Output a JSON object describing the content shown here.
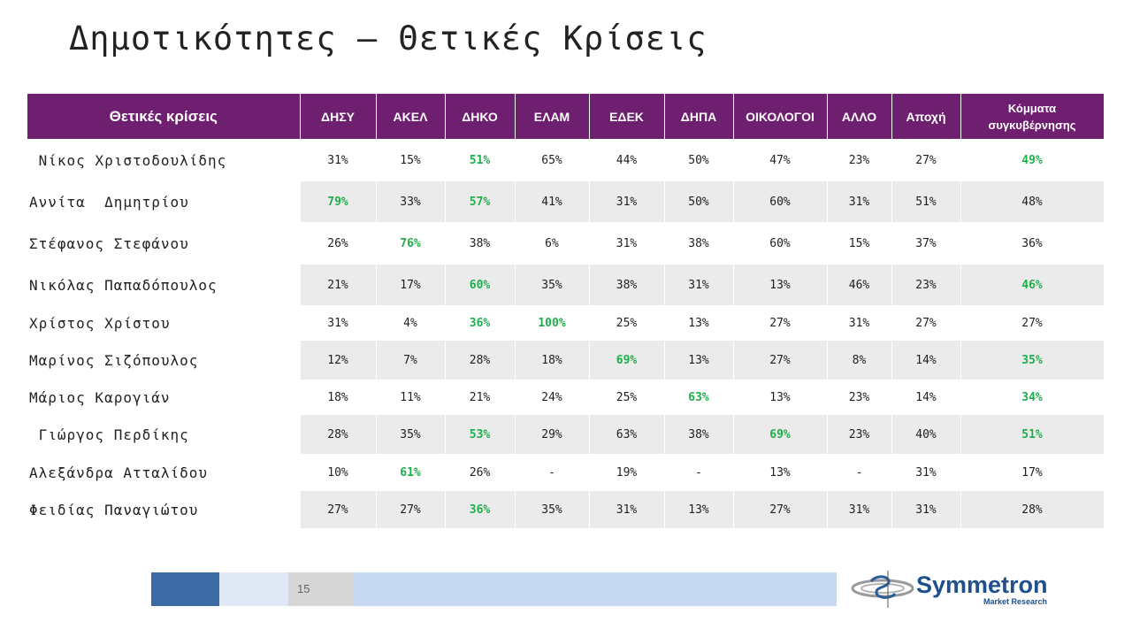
{
  "title": "Δημοτικότητες – Θετικές Κρίσεις",
  "table": {
    "header": [
      "Θετικές κρίσεις",
      "ΔΗΣΥ",
      "ΑΚΕΛ",
      "ΔΗΚΟ",
      "ΕΛΑΜ",
      "ΕΔΕΚ",
      "ΔΗΠΑ",
      "ΟΙΚΟΛΟΓΟΙ",
      "ΑΛΛΟ",
      "Αποχή",
      "Κόμματα συγκυβέρνησης"
    ],
    "rows": [
      {
        "name": " Νίκος Χριστοδουλίδης",
        "cells": [
          "31%",
          "15%",
          "51%",
          "65%",
          "44%",
          "50%",
          "47%",
          "23%",
          "27%",
          "49%"
        ]
      },
      {
        "name": "Αννίτα  Δημητρίου",
        "cells": [
          "79%",
          "33%",
          "57%",
          "41%",
          "31%",
          "50%",
          "60%",
          "31%",
          "51%",
          "48%"
        ]
      },
      {
        "name": "Στέφανος Στεφάνου",
        "cells": [
          "26%",
          "76%",
          "38%",
          "6%",
          "31%",
          "38%",
          "60%",
          "15%",
          "37%",
          "36%"
        ]
      },
      {
        "name": "Νικόλας Παπαδόπουλος",
        "cells": [
          "21%",
          "17%",
          "60%",
          "35%",
          "38%",
          "31%",
          "13%",
          "46%",
          "23%",
          "46%"
        ]
      },
      {
        "name": "Χρίστος Χρίστου",
        "cells": [
          "31%",
          "4%",
          "36%",
          "100%",
          "25%",
          "13%",
          "27%",
          "31%",
          "27%",
          "27%"
        ]
      },
      {
        "name": "Μαρίνος Σιζόπουλος",
        "cells": [
          "12%",
          "7%",
          "28%",
          "18%",
          "69%",
          "13%",
          "27%",
          "8%",
          "14%",
          "35%"
        ]
      },
      {
        "name": "Μάριος Καρογιάν",
        "cells": [
          "18%",
          "11%",
          "21%",
          "24%",
          "25%",
          "63%",
          "13%",
          "23%",
          "14%",
          "34%"
        ]
      },
      {
        "name": " Γιώργος Περδίκης",
        "cells": [
          "28%",
          "35%",
          "53%",
          "29%",
          "63%",
          "38%",
          "69%",
          "23%",
          "40%",
          "51%"
        ]
      },
      {
        "name": "Αλεξάνδρα Ατταλίδου",
        "cells": [
          "10%",
          "61%",
          "26%",
          "-",
          "19%",
          "-",
          "13%",
          "-",
          "31%",
          "17%"
        ]
      },
      {
        "name": "Φειδίας Παναγιώτου",
        "cells": [
          "27%",
          "27%",
          "36%",
          "35%",
          "31%",
          "13%",
          "27%",
          "31%",
          "31%",
          "28%"
        ]
      }
    ],
    "highlights": [
      [
        2,
        9
      ],
      [
        0,
        2
      ],
      [
        1
      ],
      [
        2,
        9
      ],
      [
        2,
        3
      ],
      [
        4,
        9
      ],
      [
        5,
        9
      ],
      [
        2,
        6,
        9
      ],
      [
        1
      ],
      [
        2
      ]
    ],
    "highlight_color": "#1fae4c",
    "header_color": "#6e1f6f"
  },
  "footer": {
    "page_number": "15",
    "logo_name": "Symmetron",
    "logo_sub": "Market Research"
  }
}
